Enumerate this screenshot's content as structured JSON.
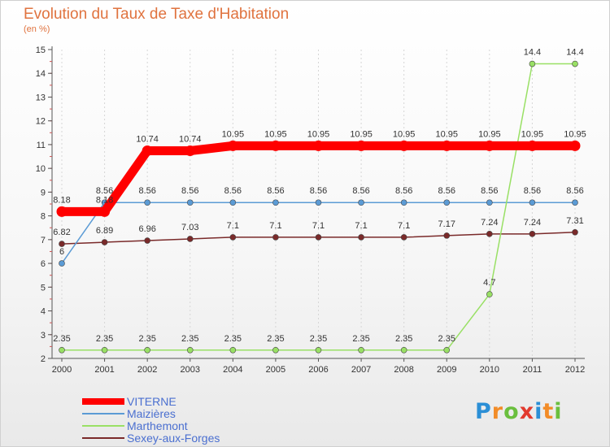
{
  "chart_data": {
    "type": "line",
    "title": "Evolution du Taux de Taxe d'Habitation",
    "subtitle": "(en %)",
    "x": [
      "2000",
      "2001",
      "2002",
      "2003",
      "2004",
      "2005",
      "2006",
      "2007",
      "2008",
      "2009",
      "2010",
      "2011",
      "2012"
    ],
    "ylim": [
      2,
      15
    ],
    "yticks": [
      2,
      3,
      4,
      5,
      6,
      7,
      8,
      9,
      10,
      11,
      12,
      13,
      14,
      15
    ],
    "series": [
      {
        "name": "VITERNE",
        "color": "#ff0000",
        "weight": "thick",
        "values": [
          8.18,
          8.18,
          10.74,
          10.74,
          10.95,
          10.95,
          10.95,
          10.95,
          10.95,
          10.95,
          10.95,
          10.95,
          10.95
        ],
        "labels": [
          "8.18",
          "8.18",
          "10.74",
          "10.74",
          "10.95",
          "10.95",
          "10.95",
          "10.95",
          "10.95",
          "10.95",
          "10.95",
          "10.95",
          "10.95"
        ]
      },
      {
        "name": "Maizières",
        "color": "#5b9bd5",
        "weight": "thin",
        "values": [
          6,
          8.56,
          8.56,
          8.56,
          8.56,
          8.56,
          8.56,
          8.56,
          8.56,
          8.56,
          8.56,
          8.56,
          8.56
        ],
        "labels": [
          "6",
          "8.56",
          "8.56",
          "8.56",
          "8.56",
          "8.56",
          "8.56",
          "8.56",
          "8.56",
          "8.56",
          "8.56",
          "8.56",
          "8.56"
        ]
      },
      {
        "name": "Marthemont",
        "color": "#99e065",
        "weight": "thin",
        "values": [
          2.35,
          2.35,
          2.35,
          2.35,
          2.35,
          2.35,
          2.35,
          2.35,
          2.35,
          2.35,
          4.7,
          14.4,
          14.4
        ],
        "labels": [
          "2.35",
          "2.35",
          "2.35",
          "2.35",
          "2.35",
          "2.35",
          "2.35",
          "2.35",
          "2.35",
          "2.35",
          "4.7",
          "14.4",
          "14.4"
        ]
      },
      {
        "name": "Sexey-aux-Forges",
        "color": "#7a2a2a",
        "weight": "thin",
        "values": [
          6.82,
          6.89,
          6.96,
          7.03,
          7.1,
          7.1,
          7.1,
          7.1,
          7.1,
          7.17,
          7.24,
          7.24,
          7.31
        ],
        "labels": [
          "6.82",
          "6.89",
          "6.96",
          "7.03",
          "7.1",
          "7.1",
          "7.1",
          "7.1",
          "7.1",
          "7.17",
          "7.24",
          "7.24",
          "7.31"
        ]
      }
    ]
  },
  "logo": {
    "letters": [
      "P",
      "r",
      "o",
      "x",
      "i",
      "t",
      "i"
    ],
    "colors": [
      "#2b8fd6",
      "#f28c28",
      "#6abf3e",
      "#e23a2e",
      "#2b8fd6",
      "#f28c28",
      "#6abf3e"
    ]
  }
}
